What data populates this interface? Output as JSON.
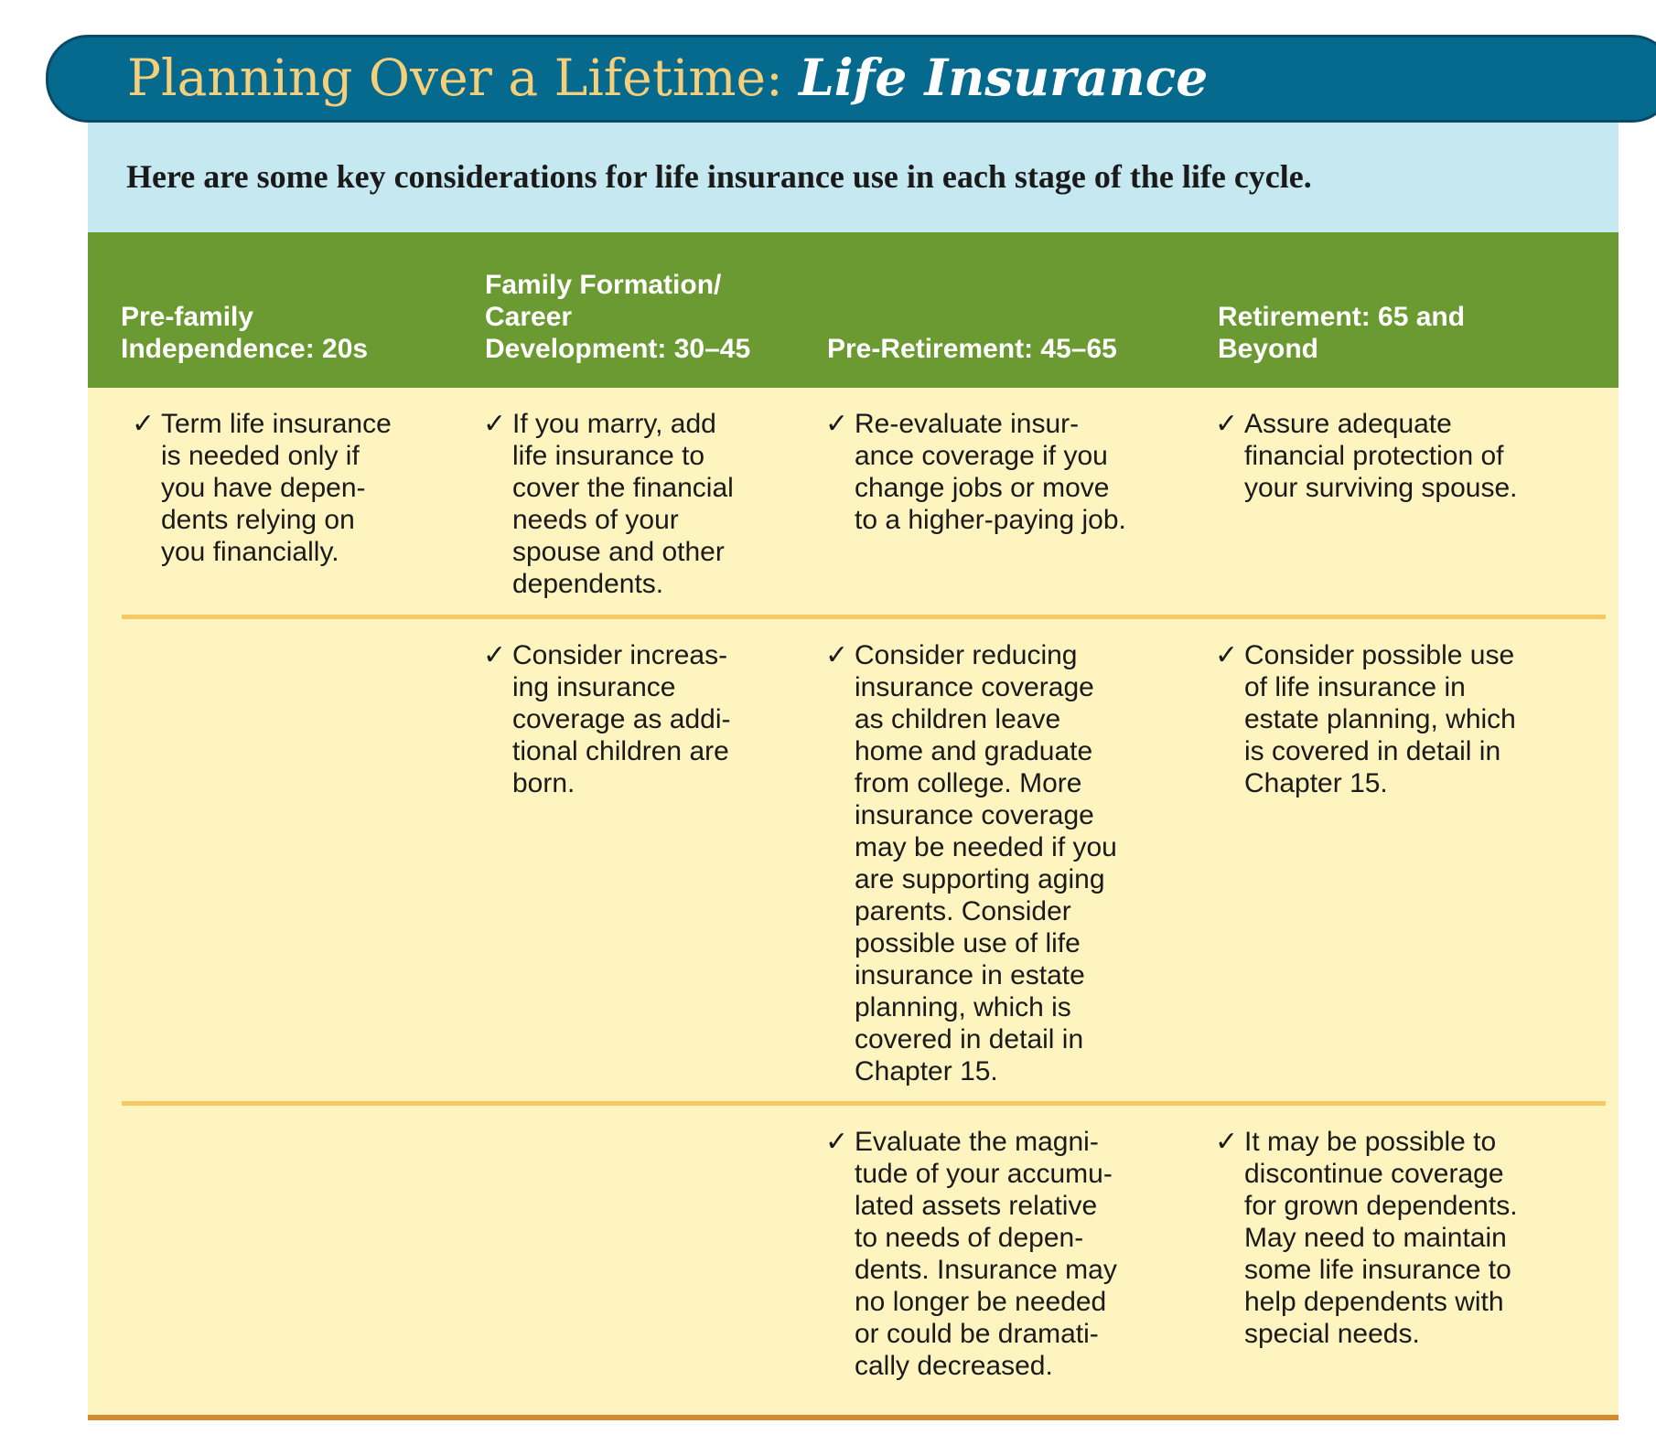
{
  "title": {
    "main": "Planning Over a Lifetime: ",
    "emphasis": "Life Insurance"
  },
  "intro": "Here are some key considerations for life insurance use in each stage of the life cycle.",
  "check_glyph": "✓",
  "columns": [
    "Pre-family\nIndependence: 20s",
    "Family Formation/\nCareer\nDevelopment: 30–45",
    "Pre-Retirement: 45–65",
    "Retirement: 65 and\nBeyond"
  ],
  "rows": [
    [
      "Term life insurance\nis needed only if\nyou have depen-\ndents relying on\nyou financially.",
      "If you marry, add\nlife insurance to\ncover the financial\nneeds of your\nspouse and other\ndependents.",
      "Re-evaluate insur-\nance coverage if you\nchange jobs or move\nto a higher-paying job.",
      "Assure adequate\nfinancial protection of\nyour surviving spouse."
    ],
    [
      "",
      "Consider increas-\ning insurance\ncoverage as addi-\ntional children are\nborn.",
      "Consider reducing\ninsurance coverage\nas children leave\nhome and graduate\nfrom college. More\ninsurance coverage\nmay be needed if you\nare supporting aging\nparents. Consider\npossible use of life\ninsurance in estate\nplanning, which is\ncovered in detail in\nChapter 15.",
      "Consider possible use\nof life insurance in\nestate planning, which\nis covered in detail in\nChapter 15."
    ],
    [
      "",
      "",
      "Evaluate the magni-\ntude of your accumu-\nlated assets relative\nto needs of depen-\ndents. Insurance may\nno longer be needed\nor could be dramati-\ncally decreased.",
      "It may be possible to\ndiscontinue coverage\nfor grown dependents.\nMay need to maintain\nsome life insurance to\nhelp dependents with\nspecial needs."
    ]
  ]
}
